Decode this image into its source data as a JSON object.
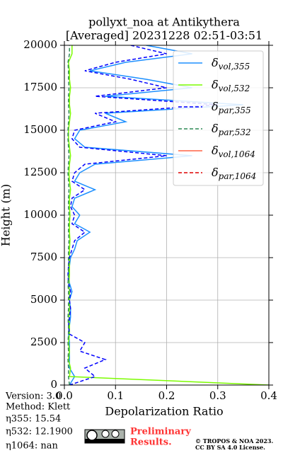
{
  "chart_data": {
    "type": "line",
    "orientation": "profile",
    "title": "pollyxt_noa at Antikythera",
    "subtitle": "[Averaged] 20231228 02:51-03:51",
    "xlabel": "Depolarization Ratio",
    "ylabel": "Height (m)",
    "xlim": [
      0,
      0.4
    ],
    "xticks": [
      {
        "value": 0,
        "label": "0.0"
      },
      0.1,
      0.2,
      0.3,
      0.4
    ],
    "ylim": [
      0,
      20000
    ],
    "yticks": [
      0,
      2500,
      5000,
      7500,
      10000,
      12500,
      15000,
      17500,
      20000
    ],
    "grid": true,
    "legend": "upper right",
    "heights": [
      0,
      500,
      1000,
      1500,
      2000,
      2500,
      3000,
      3500,
      4000,
      4500,
      5000,
      5500,
      6000,
      6500,
      7000,
      7500,
      8000,
      8500,
      9000,
      9500,
      10000,
      10500,
      11000,
      11500,
      12000,
      12500,
      13000,
      13500,
      14000,
      14500,
      15000,
      15500,
      16000,
      16500,
      17000,
      17500,
      18000,
      18500,
      19000,
      19500,
      20000
    ],
    "series": [
      {
        "name": "δvol,355",
        "color": "#1e90ff",
        "dash": false,
        "values": [
          0.01,
          0.02,
          0.01,
          0.01,
          0.01,
          0.01,
          0.008,
          0.01,
          0.012,
          0.012,
          0.01,
          0.015,
          0.01,
          0.008,
          0.01,
          0.012,
          0.02,
          0.025,
          0.05,
          0.02,
          0.03,
          0.015,
          0.02,
          0.06,
          0.02,
          0.03,
          0.06,
          0.25,
          0.04,
          0.02,
          0.03,
          0.12,
          0.08,
          0.35,
          0.08,
          0.25,
          0.16,
          0.05,
          0.12,
          0.25,
          0.16
        ]
      },
      {
        "name": "δvol,532",
        "color": "#7cfc00",
        "dash": false,
        "values": [
          0.4,
          0.01,
          0.012,
          0.008,
          0.01,
          0.008,
          0.01,
          0.01,
          0.009,
          0.01,
          0.01,
          0.01,
          0.009,
          0.01,
          0.01,
          0.01,
          0.01,
          0.011,
          0.01,
          0.01,
          0.011,
          0.01,
          0.01,
          0.012,
          0.01,
          0.009,
          0.01,
          0.012,
          0.01,
          0.008,
          0.008,
          0.01,
          0.012,
          0.01,
          0.01,
          0.012,
          0.01,
          0.01,
          0.008,
          0.015,
          0.015
        ]
      },
      {
        "name": "δpar,355",
        "color": "#0000ff",
        "dash": true,
        "values": [
          0.01,
          0.06,
          0.04,
          0.08,
          0.03,
          0.04,
          0.01,
          0.008,
          0.01,
          0.012,
          0.01,
          0.012,
          0.008,
          0.007,
          0.008,
          0.01,
          0.015,
          0.02,
          0.04,
          0.015,
          0.02,
          0.012,
          0.015,
          0.04,
          0.015,
          0.02,
          0.04,
          0.2,
          0.03,
          0.015,
          0.02,
          0.1,
          0.06,
          0.3,
          0.06,
          0.2,
          0.13,
          0.04,
          0.1,
          0.2,
          0.13
        ]
      },
      {
        "name": "δpar,532",
        "color": "#2e8b57",
        "dash": true,
        "values": [
          0.01,
          0.008,
          0.008,
          0.007,
          0.008,
          0.007,
          0.008,
          0.008,
          0.007,
          0.008,
          0.008,
          0.008,
          0.007,
          0.008,
          0.008,
          0.008,
          0.008,
          0.009,
          0.008,
          0.008,
          0.009,
          0.008,
          0.008,
          0.009,
          0.008,
          0.007,
          0.008,
          0.009,
          0.008,
          0.007,
          0.007,
          0.008,
          0.009,
          0.008,
          0.008,
          0.009,
          0.008,
          0.008,
          0.007,
          0.01,
          0.01
        ]
      },
      {
        "name": "δvol,1064",
        "color": "#ff6347",
        "dash": false,
        "values": [
          null,
          null,
          null,
          null,
          null,
          null,
          null,
          null,
          null,
          null,
          null,
          null,
          null,
          null,
          null,
          null,
          null,
          null,
          null,
          null,
          null,
          null,
          null,
          null,
          null,
          null,
          null,
          null,
          null,
          null,
          null,
          null,
          null,
          null,
          null,
          null,
          null,
          null,
          null,
          null,
          null
        ]
      },
      {
        "name": "δpar,1064",
        "color": "#dd0000",
        "dash": true,
        "values": [
          null,
          null,
          null,
          null,
          null,
          null,
          null,
          null,
          null,
          null,
          null,
          null,
          null,
          null,
          null,
          null,
          null,
          null,
          null,
          null,
          null,
          null,
          null,
          null,
          null,
          null,
          null,
          null,
          null,
          null,
          null,
          null,
          null,
          null,
          null,
          null,
          null,
          null,
          null,
          null,
          null
        ]
      }
    ]
  },
  "info": {
    "version": "Version: 3.0",
    "method": "Method: Klett",
    "eta355": "η355:  15.54",
    "eta532": "η532: 12.1900",
    "eta1064": "η1064:    nan"
  },
  "footer": {
    "preliminary": [
      "Preliminary",
      "Results."
    ],
    "copyright": [
      "© TROPOS & NOA 2023.",
      "CC BY SA 4.0 License."
    ]
  }
}
